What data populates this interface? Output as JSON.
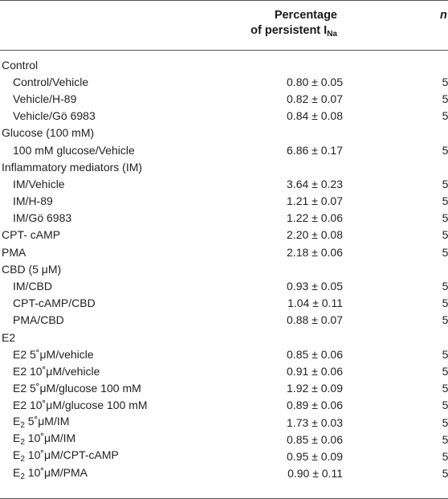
{
  "header": {
    "col_value_line1": "Percentage",
    "col_value_line2": "of persistent I",
    "col_value_sub": "Na",
    "col_n": "n"
  },
  "rows": [
    {
      "kind": "group",
      "label": "Control",
      "value": "",
      "n": ""
    },
    {
      "kind": "item",
      "label": "Control/Vehicle",
      "value": "0.80 ± 0.05",
      "n": "5"
    },
    {
      "kind": "item",
      "label": "Vehicle/H-89",
      "value": "0.82 ± 0.07",
      "n": "5"
    },
    {
      "kind": "item",
      "label": "Vehicle/Gö 6983",
      "value": "0.84 ± 0.08",
      "n": "5"
    },
    {
      "kind": "group",
      "label": "Glucose (100 mM)",
      "value": "",
      "n": ""
    },
    {
      "kind": "item",
      "label": "100 mM glucose/Vehicle",
      "value": "6.86 ± 0.17",
      "n": "5"
    },
    {
      "kind": "group",
      "label": "Inflammatory mediators (IM)",
      "value": "",
      "n": ""
    },
    {
      "kind": "item",
      "label": "IM/Vehicle",
      "value": "3.64 ± 0.23",
      "n": "5"
    },
    {
      "kind": "item",
      "label": "IM/H-89",
      "value": "1.21 ± 0.07",
      "n": "5"
    },
    {
      "kind": "item",
      "label": "IM/Gö 6983",
      "value": "1.22 ± 0.06",
      "n": "5"
    },
    {
      "kind": "group",
      "label": "CPT- cAMP",
      "value": "2.20 ± 0.08",
      "n": "5"
    },
    {
      "kind": "group",
      "label": "PMA",
      "value": "2.18 ± 0.06",
      "n": "5"
    },
    {
      "kind": "group",
      "label": "CBD (5 μM)",
      "value": "",
      "n": ""
    },
    {
      "kind": "item",
      "label": "IM/CBD",
      "value": "0.93 ± 0.05",
      "n": "5"
    },
    {
      "kind": "item",
      "label": "CPT-cAMP/CBD",
      "value": "1.04 ± 0.11",
      "n": "5"
    },
    {
      "kind": "item",
      "label": "PMA/CBD",
      "value": "0.88 ± 0.07",
      "n": "5"
    },
    {
      "kind": "group",
      "label": "E2",
      "value": "",
      "n": ""
    },
    {
      "kind": "item",
      "label": "E2 5˚μM/vehicle",
      "value": "0.85 ± 0.06",
      "n": "5"
    },
    {
      "kind": "item",
      "label": "E2 10˚μM/vehicle",
      "value": "0.91 ± 0.06",
      "n": "5"
    },
    {
      "kind": "item",
      "label": "E2 5˚μM/glucose 100 mM",
      "value": "1.92 ± 0.09",
      "n": "5"
    },
    {
      "kind": "item",
      "label": "E2 10˚μM/glucose 100 mM",
      "value": "0.89 ± 0.06",
      "n": "5"
    },
    {
      "kind": "item-sub",
      "label_main": "E",
      "label_sub": "2",
      "label_rest": " 5˚μM/IM",
      "value": "1.73 ± 0.03",
      "n": "5"
    },
    {
      "kind": "item-sub",
      "label_main": "E",
      "label_sub": "2",
      "label_rest": " 10˚μM/IM",
      "value": "0.85 ± 0.06",
      "n": "5"
    },
    {
      "kind": "item-sub",
      "label_main": "E",
      "label_sub": "2",
      "label_rest": " 10˚μM/CPT-cAMP",
      "value": "0.95 ± 0.09",
      "n": "5"
    },
    {
      "kind": "item-sub",
      "label_main": "E",
      "label_sub": "2",
      "label_rest": " 10˚μM/PMA",
      "value": "0.90 ± 0.11",
      "n": "5"
    }
  ]
}
